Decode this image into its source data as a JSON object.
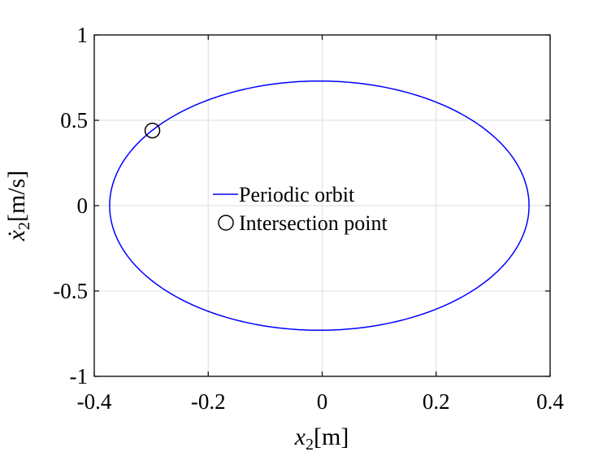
{
  "chart_data": {
    "type": "line",
    "title": "",
    "xlabel": {
      "var": "x",
      "sub": "2",
      "unit": "[m]"
    },
    "ylabel": {
      "var": "ẋ",
      "sub": "2",
      "unit": "[m/s]"
    },
    "xlim": [
      -0.4,
      0.4
    ],
    "ylim": [
      -1,
      1
    ],
    "xticks": [
      -0.4,
      -0.2,
      0,
      0.2,
      0.4
    ],
    "xtick_labels": [
      "-0.4",
      "-0.2",
      "0",
      "0.2",
      "0.4"
    ],
    "yticks": [
      -1,
      -0.5,
      0,
      0.5,
      1
    ],
    "ytick_labels": [
      "-1",
      "-0.5",
      "0",
      "0.5",
      "1"
    ],
    "grid": true,
    "legend_position": "center",
    "series": [
      {
        "name": "Periodic orbit",
        "kind": "ellipse",
        "center": [
          -0.005,
          0.0
        ],
        "semi_axis_x": 0.368,
        "semi_axis_y": 0.73,
        "color": "#0000ff"
      },
      {
        "name": "Intersection point",
        "kind": "marker",
        "marker": "circle",
        "x": -0.298,
        "y": 0.44,
        "color": "#000000"
      }
    ]
  }
}
